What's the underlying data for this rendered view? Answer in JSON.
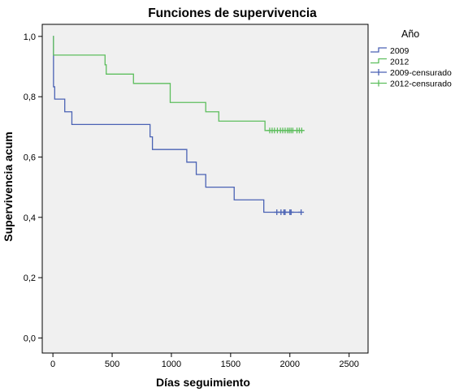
{
  "chart_data": {
    "type": "line",
    "title": "Funciones de supervivencia",
    "xlabel": "Días seguimiento",
    "ylabel": "Supervivencia acum",
    "xlim": [
      -90,
      2660
    ],
    "ylim": [
      -0.05,
      1.04
    ],
    "xticks": [
      {
        "value": 0,
        "label": "0"
      },
      {
        "value": 500,
        "label": "500"
      },
      {
        "value": 1000,
        "label": "1000"
      },
      {
        "value": 1500,
        "label": "1500"
      },
      {
        "value": 2000,
        "label": "2000"
      },
      {
        "value": 2500,
        "label": "2500"
      }
    ],
    "yticks": [
      {
        "value": 0.0,
        "label": "0,0"
      },
      {
        "value": 0.2,
        "label": "0,2"
      },
      {
        "value": 0.4,
        "label": "0,4"
      },
      {
        "value": 0.6,
        "label": "0,6"
      },
      {
        "value": 0.8,
        "label": "0,8"
      },
      {
        "value": 1.0,
        "label": "1,0"
      }
    ],
    "grid": false,
    "legend": {
      "title": "Año",
      "position": "top-right, outside plot",
      "entries": [
        "2009",
        "2012",
        "2009-censurado",
        "2012-censurado"
      ]
    },
    "series": [
      {
        "name": "2009",
        "color": "#4A62B4",
        "step_x": [
          0,
          5,
          15,
          25,
          100,
          160,
          820,
          840,
          1130,
          1210,
          1290,
          1530,
          1780,
          2100
        ],
        "step_y": [
          1.0,
          0.833,
          0.792,
          0.792,
          0.75,
          0.708,
          0.667,
          0.625,
          0.583,
          0.542,
          0.5,
          0.458,
          0.417,
          0.417
        ],
        "censored_x": [
          1890,
          1925,
          1950,
          1960,
          2000,
          2010,
          2095
        ],
        "censored_y": 0.417
      },
      {
        "name": "2012",
        "color": "#5DBE5D",
        "step_x": [
          0,
          5,
          440,
          450,
          680,
          990,
          1290,
          1400,
          1790,
          2120
        ],
        "step_y": [
          1.0,
          0.938,
          0.906,
          0.875,
          0.844,
          0.781,
          0.75,
          0.719,
          0.688,
          0.688
        ],
        "censored_x": [
          1830,
          1850,
          1870,
          1895,
          1920,
          1940,
          1960,
          1980,
          1995,
          2010,
          2025,
          2060,
          2080,
          2100
        ],
        "censored_y": 0.688
      }
    ]
  }
}
